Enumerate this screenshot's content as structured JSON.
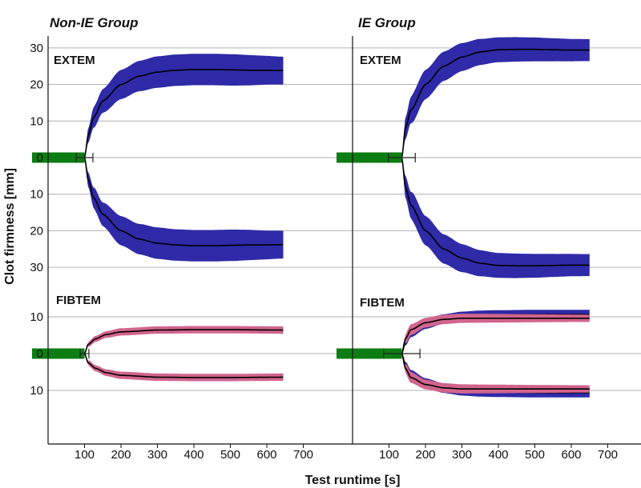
{
  "chart_data": {
    "type": "area",
    "xlabel": "Test runtime [s]",
    "ylabel": "Clot firmness [mm]",
    "x_ticks": [
      100,
      200,
      300,
      400,
      500,
      600,
      700
    ],
    "xlim": [
      10,
      790
    ],
    "grid": true,
    "colors": {
      "blue_band": "#2e2aa8",
      "pink_band": "#d1648e",
      "green_bar": "#0c7d12",
      "median_line": "#000000",
      "grid": "#b0b0b0"
    },
    "panels": [
      {
        "group": "Non-IE Group",
        "assay": "EXTEM",
        "y_ticks": [
          {
            "label": "30",
            "value": 30
          },
          {
            "label": "20",
            "value": 20
          },
          {
            "label": "10",
            "value": 10
          },
          {
            "label": "0",
            "value": 0
          },
          {
            "label": "10",
            "value": -10
          },
          {
            "label": "20",
            "value": -20
          },
          {
            "label": "30",
            "value": -30
          }
        ],
        "ct": {
          "value": 100,
          "err": 23
        },
        "band_color": "pink",
        "series": [
          {
            "color": "blue",
            "median": [
              [
                100,
                0
              ],
              [
                110,
                6
              ],
              [
                125,
                11
              ],
              [
                150,
                15.5
              ],
              [
                200,
                20
              ],
              [
                250,
                22.3
              ],
              [
                300,
                23.4
              ],
              [
                350,
                23.9
              ],
              [
                400,
                24.1
              ],
              [
                450,
                24.1
              ],
              [
                500,
                24
              ],
              [
                550,
                23.9
              ],
              [
                600,
                23.9
              ],
              [
                645,
                23.8
              ]
            ],
            "half_width": [
              [
                100,
                0
              ],
              [
                110,
                2
              ],
              [
                130,
                3
              ],
              [
                200,
                4
              ],
              [
                300,
                4.3
              ],
              [
                400,
                4.3
              ],
              [
                500,
                4.3
              ],
              [
                645,
                3.8
              ]
            ]
          }
        ]
      },
      {
        "group": "Non-IE Group",
        "assay": "FIBTEM",
        "y_ticks": [
          {
            "label": "10",
            "value": 10
          },
          {
            "label": "0",
            "value": 0
          },
          {
            "label": "10",
            "value": -10
          }
        ],
        "ct": {
          "value": 100,
          "err": 12
        },
        "series": [
          {
            "color": "pink",
            "median": [
              [
                100,
                0
              ],
              [
                110,
                2.5
              ],
              [
                130,
                4
              ],
              [
                160,
                5.2
              ],
              [
                200,
                5.9
              ],
              [
                300,
                6.4
              ],
              [
                400,
                6.5
              ],
              [
                500,
                6.5
              ],
              [
                645,
                6.4
              ]
            ],
            "half_width": [
              [
                100,
                0
              ],
              [
                115,
                0.8
              ],
              [
                200,
                1
              ],
              [
                645,
                1
              ]
            ]
          }
        ]
      },
      {
        "group": "IE Group",
        "assay": "EXTEM",
        "y_ticks": [
          {
            "label": "30",
            "value": 30
          },
          {
            "label": "20",
            "value": 20
          },
          {
            "label": "10",
            "value": 10
          },
          {
            "label": "0",
            "value": 0
          },
          {
            "label": "10",
            "value": -10
          },
          {
            "label": "20",
            "value": -20
          },
          {
            "label": "30",
            "value": -30
          }
        ],
        "ct": {
          "value": 135,
          "err": 37
        },
        "series": [
          {
            "color": "blue",
            "median": [
              [
                135,
                0
              ],
              [
                145,
                8
              ],
              [
                160,
                13
              ],
              [
                200,
                20
              ],
              [
                250,
                25
              ],
              [
                300,
                27.5
              ],
              [
                350,
                28.9
              ],
              [
                400,
                29.5
              ],
              [
                450,
                29.6
              ],
              [
                500,
                29.6
              ],
              [
                550,
                29.5
              ],
              [
                600,
                29.4
              ],
              [
                650,
                29.4
              ]
            ],
            "half_width": [
              [
                135,
                0
              ],
              [
                145,
                3
              ],
              [
                170,
                4
              ],
              [
                250,
                4
              ],
              [
                400,
                3.4
              ],
              [
                650,
                3
              ]
            ]
          }
        ]
      },
      {
        "group": "IE Group",
        "assay": "FIBTEM",
        "y_ticks": [
          {
            "label": "10",
            "value": 10
          },
          {
            "label": "0",
            "value": 0
          },
          {
            "label": "10",
            "value": -10
          }
        ],
        "ct": {
          "value": 135,
          "err": 50
        },
        "series": [
          {
            "color": "blue",
            "median": [
              [
                135,
                0
              ],
              [
                145,
                3
              ],
              [
                160,
                5.5
              ],
              [
                200,
                8
              ],
              [
                250,
                9.4
              ],
              [
                300,
                10.1
              ],
              [
                350,
                10.4
              ],
              [
                400,
                10.5
              ],
              [
                500,
                10.6
              ],
              [
                650,
                10.6
              ]
            ],
            "half_width": [
              [
                135,
                0
              ],
              [
                150,
                1
              ],
              [
                200,
                1.3
              ],
              [
                650,
                1.3
              ]
            ]
          },
          {
            "color": "pink",
            "median": [
              [
                135,
                0
              ],
              [
                145,
                4
              ],
              [
                160,
                6.5
              ],
              [
                200,
                8.4
              ],
              [
                250,
                9.3
              ],
              [
                300,
                9.6
              ],
              [
                400,
                9.6
              ],
              [
                650,
                9.6
              ]
            ],
            "half_width": [
              [
                135,
                0
              ],
              [
                150,
                1.5
              ],
              [
                200,
                1.3
              ],
              [
                650,
                1
              ]
            ]
          }
        ]
      }
    ]
  }
}
